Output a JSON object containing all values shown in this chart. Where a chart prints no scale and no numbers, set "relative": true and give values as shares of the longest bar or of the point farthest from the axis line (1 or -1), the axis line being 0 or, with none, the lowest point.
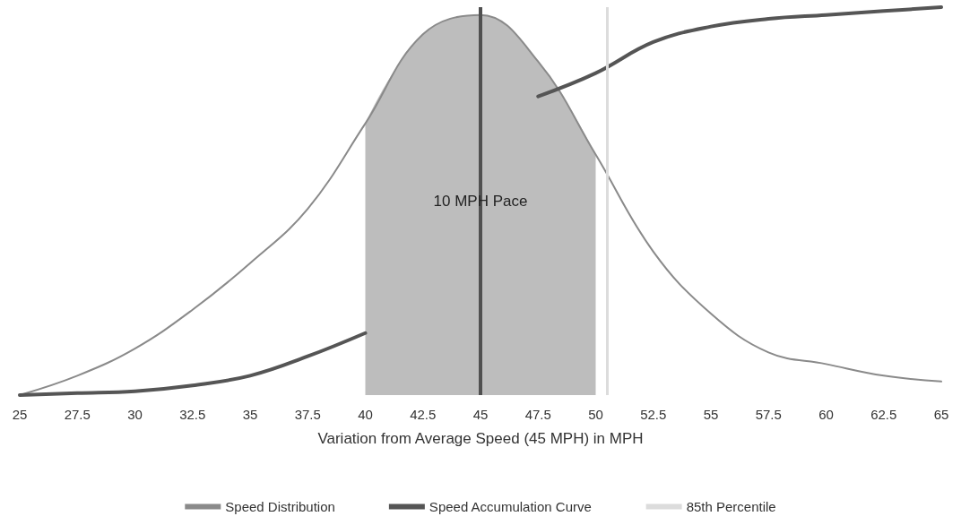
{
  "chart_data": {
    "type": "line",
    "relative": true,
    "xlabel": "Variation from Average Speed (45 MPH) in MPH",
    "x": [
      25,
      27.5,
      30,
      32.5,
      35,
      37.5,
      40,
      42.5,
      45,
      47.5,
      50,
      52.5,
      55,
      57.5,
      60,
      62.5,
      65
    ],
    "xlim": [
      25,
      65
    ],
    "xticks": [
      25,
      27.5,
      30,
      32.5,
      35,
      37.5,
      40,
      42.5,
      45,
      47.5,
      50,
      52.5,
      55,
      57.5,
      60,
      62.5,
      65
    ],
    "series": [
      {
        "name": "Speed Distribution",
        "color": "#8a8a8a",
        "line_style": "solid",
        "values": [
          0,
          0.05,
          0.12,
          0.22,
          0.34,
          0.48,
          0.7,
          0.93,
          0.98,
          0.86,
          0.62,
          0.37,
          0.21,
          0.11,
          0.08,
          0.05,
          0.035
        ]
      },
      {
        "name": "Speed Accumulation Curve",
        "color": "#555555",
        "line_style": "solid",
        "values": [
          0,
          0.005,
          0.01,
          0.025,
          0.05,
          0.1,
          0.16,
          null,
          null,
          0.77,
          0.83,
          0.91,
          0.95,
          0.97,
          0.98,
          0.99,
          1
        ]
      }
    ],
    "bands": [
      {
        "axis": "x",
        "from": 40,
        "to": 50,
        "label": "10 MPH Pace",
        "color": "#bdbdbd"
      }
    ],
    "ref_lines": [
      {
        "axis": "x",
        "value": 45,
        "label": null,
        "color": "#505050",
        "line_style": "solid"
      },
      {
        "axis": "x",
        "value": 50.5,
        "label": "85th Percentile",
        "color": "#dcdcdc",
        "line_style": "solid"
      }
    ],
    "marker": "none",
    "grid": false,
    "legend": "bottom"
  }
}
